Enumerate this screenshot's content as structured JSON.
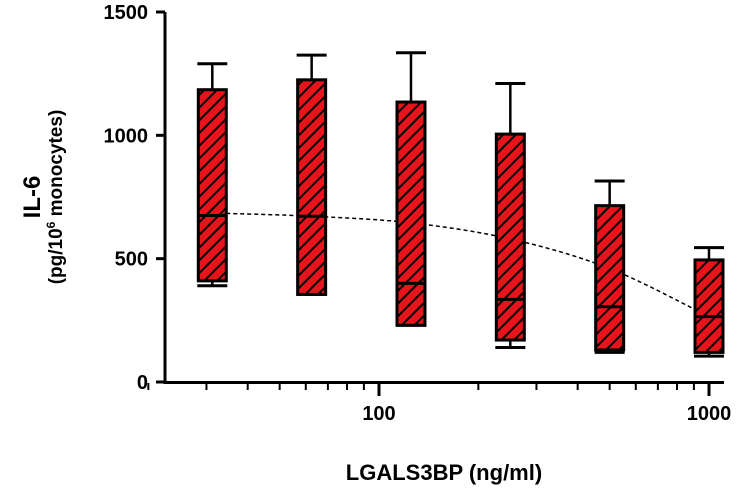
{
  "chart_data": {
    "type": "box",
    "xscale": "log",
    "xlabel": "LGALS3BP (ng/ml)",
    "ylabel": "IL-6",
    "ylabel_sub_prefix": "(pg/10",
    "ylabel_sub_sup": "6",
    "ylabel_sub_suffix": " monocytes)",
    "xlim": [
      20,
      1050
    ],
    "ylim": [
      0,
      1500
    ],
    "x_ticks": [
      100,
      1000
    ],
    "x_tick_labels": [
      "100",
      "1000"
    ],
    "y_ticks": [
      0,
      500,
      1000,
      1500
    ],
    "y_tick_labels": [
      "0",
      "500",
      "1000",
      "1500"
    ],
    "fill_color": "#e8141c",
    "hatch_color": "#000000",
    "grid": false,
    "legend": "none",
    "boxes": [
      {
        "x": 31.25,
        "min": 390,
        "q1": 410,
        "median": 675,
        "q3": 1185,
        "max": 1290
      },
      {
        "x": 62.5,
        "min": 355,
        "q1": 355,
        "median": 672,
        "q3": 1225,
        "max": 1325
      },
      {
        "x": 125,
        "min": 230,
        "q1": 230,
        "median": 400,
        "q3": 1135,
        "max": 1335
      },
      {
        "x": 250,
        "min": 140,
        "q1": 170,
        "median": 335,
        "q3": 1005,
        "max": 1210
      },
      {
        "x": 500,
        "min": 120,
        "q1": 130,
        "median": 305,
        "q3": 715,
        "max": 815
      },
      {
        "x": 1000,
        "min": 105,
        "q1": 120,
        "median": 265,
        "q3": 495,
        "max": 545
      }
    ],
    "fit_curve": {
      "style": "dashed",
      "x": [
        31.25,
        62.5,
        125,
        250,
        500,
        1000
      ],
      "y": [
        685,
        672,
        645,
        580,
        460,
        265
      ]
    }
  }
}
